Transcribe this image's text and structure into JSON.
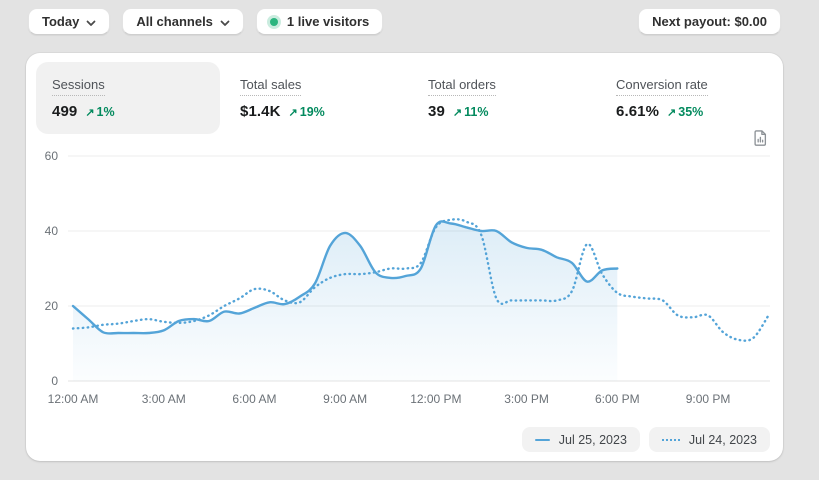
{
  "topbar": {
    "date_range": "Today",
    "channels": "All channels",
    "live_visitors": "1 live visitors",
    "next_payout": "Next payout: $0.00"
  },
  "ui": {
    "trend_arrow": "↗"
  },
  "metrics": [
    {
      "label": "Sessions",
      "value": "499",
      "change": "1%",
      "selected": true
    },
    {
      "label": "Total sales",
      "value": "$1.4K",
      "change": "19%",
      "selected": false
    },
    {
      "label": "Total orders",
      "value": "39",
      "change": "11%",
      "selected": false
    },
    {
      "label": "Conversion rate",
      "value": "6.61%",
      "change": "35%",
      "selected": false
    }
  ],
  "legend": [
    {
      "label": "Jul 25, 2023",
      "style": "solid"
    },
    {
      "label": "Jul 24, 2023",
      "style": "dotted"
    }
  ],
  "chart_data": {
    "type": "line",
    "title": "Sessions over time (hourly)",
    "x_unit": "hours",
    "x_ticks": [
      "12:00 AM",
      "3:00 AM",
      "6:00 AM",
      "9:00 AM",
      "12:00 PM",
      "3:00 PM",
      "6:00 PM",
      "9:00 PM"
    ],
    "x_tick_hours": [
      0,
      3,
      6,
      9,
      12,
      15,
      18,
      21
    ],
    "y_ticks": [
      0,
      20,
      40,
      60
    ],
    "ylim": [
      0,
      60
    ],
    "grid": true,
    "legend_position": "bottom-right",
    "colors": {
      "line": "#54a4d8",
      "fill": "#54a4d8",
      "grid": "#ececec",
      "axis_text": "#6b7177"
    },
    "series": [
      {
        "name": "Jul 25, 2023",
        "style": "solid",
        "start_hour": 0,
        "step_hours": 0.5,
        "values": [
          20,
          16.5,
          13,
          12.8,
          12.8,
          12.8,
          13.5,
          16,
          16.5,
          16,
          18.5,
          18,
          19.5,
          21,
          20.5,
          22.5,
          26,
          36,
          39.5,
          36,
          29,
          27.5,
          28,
          30,
          41.5,
          42,
          41,
          40,
          40,
          37,
          35.5,
          35,
          33,
          31.5,
          26.5,
          29.5,
          30
        ]
      },
      {
        "name": "Jul 24, 2023",
        "style": "dotted",
        "start_hour": 0,
        "step_hours": 0.5,
        "values": [
          14,
          14.3,
          15,
          15.3,
          16,
          16.5,
          15.8,
          15.5,
          16,
          17.5,
          20,
          22,
          24.5,
          24,
          21.5,
          21,
          25,
          27.5,
          28.5,
          28.5,
          29,
          30,
          30,
          31.5,
          41,
          43,
          42.5,
          39,
          22,
          21.5,
          21.5,
          21.5,
          21.5,
          24,
          36.5,
          28.5,
          23.5,
          22.5,
          22,
          21.5,
          17.5,
          17,
          17.5,
          13,
          11,
          11.5,
          17.5
        ]
      }
    ]
  }
}
